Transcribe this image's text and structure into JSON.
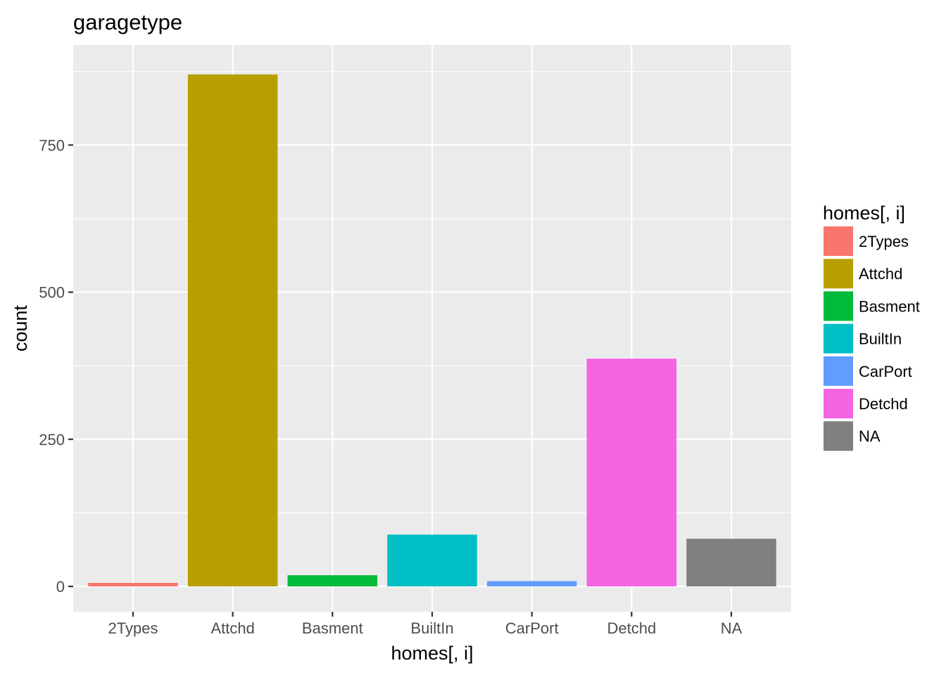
{
  "chart_data": {
    "type": "bar",
    "title": "garagetype",
    "xlabel": "homes[, i]",
    "ylabel": "count",
    "categories": [
      "2Types",
      "Attchd",
      "Basment",
      "BuiltIn",
      "CarPort",
      "Detchd",
      "NA"
    ],
    "values": [
      6,
      870,
      19,
      88,
      9,
      387,
      81
    ],
    "colors": [
      "#F8766D",
      "#B79F00",
      "#00BA38",
      "#00BFC4",
      "#619CFF",
      "#F564E3",
      "#808080"
    ],
    "ylim": [
      -43,
      920
    ],
    "yticks": [
      0,
      250,
      500,
      750
    ],
    "ytick_labels": [
      "0",
      "250",
      "500",
      "750"
    ],
    "grid": true,
    "panel_background": "#EBEBEB",
    "grid_color": "#FFFFFF",
    "legend": {
      "title": "homes[, i]",
      "position": "right",
      "entries": [
        "2Types",
        "Attchd",
        "Basment",
        "BuiltIn",
        "CarPort",
        "Detchd",
        "NA"
      ]
    }
  }
}
